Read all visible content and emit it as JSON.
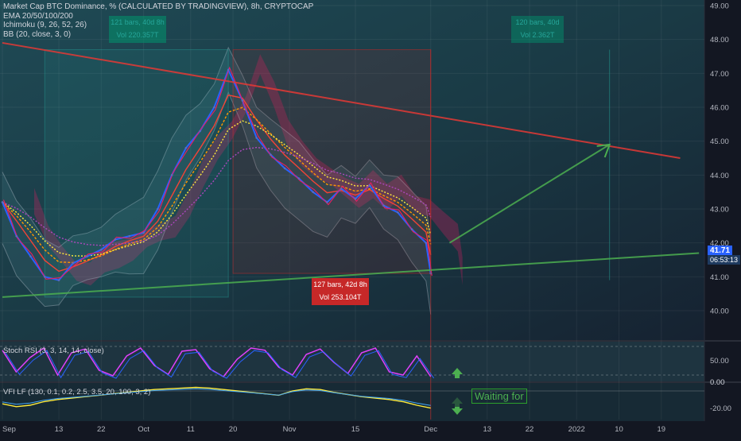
{
  "chart_data": {
    "type": "line",
    "title": "Market Cap BTC Dominance, % (CALCULATED BY TRADINGVIEW), 8h, CRYPTOCAP",
    "indicators": [
      "EMA 20/50/100/200",
      "Ichimoku (9, 26, 52, 26)",
      "BB (20, close, 3, 0)"
    ],
    "x_ticks": [
      "Sep",
      "13",
      "22",
      "Oct",
      "11",
      "20",
      "Nov",
      "15",
      "Dec",
      "13",
      "22",
      "2022",
      "10",
      "19"
    ],
    "y_ticks": [
      "49.00",
      "48.00",
      "47.00",
      "46.00",
      "45.00",
      "44.00",
      "43.00",
      "42.00",
      "41.00",
      "40.00"
    ],
    "ylim": [
      39.5,
      49.2
    ],
    "price_series": [
      [
        "Sep 1",
        43.2
      ],
      [
        "Sep 4",
        42.2
      ],
      [
        "Sep 7",
        41.6
      ],
      [
        "Sep 10",
        41.0
      ],
      [
        "Sep 13",
        40.9
      ],
      [
        "Sep 16",
        41.4
      ],
      [
        "Sep 19",
        41.6
      ],
      [
        "Sep 22",
        41.8
      ],
      [
        "Sep 25",
        42.1
      ],
      [
        "Sep 28",
        42.2
      ],
      [
        "Oct 1",
        42.3
      ],
      [
        "Oct 4",
        43.0
      ],
      [
        "Oct 7",
        44.0
      ],
      [
        "Oct 10",
        44.8
      ],
      [
        "Oct 13",
        45.3
      ],
      [
        "Oct 16",
        46.0
      ],
      [
        "Oct 19",
        47.1
      ],
      [
        "Oct 22",
        46.2
      ],
      [
        "Oct 25",
        45.1
      ],
      [
        "Oct 28",
        44.6
      ],
      [
        "Oct 31",
        44.2
      ],
      [
        "Nov 3",
        43.9
      ],
      [
        "Nov 6",
        43.5
      ],
      [
        "Nov 9",
        43.2
      ],
      [
        "Nov 12",
        43.6
      ],
      [
        "Nov 15",
        43.3
      ],
      [
        "Nov 18",
        43.7
      ],
      [
        "Nov 21",
        43.1
      ],
      [
        "Nov 24",
        42.9
      ],
      [
        "Nov 27",
        42.4
      ],
      [
        "Nov 30",
        42.0
      ],
      [
        "Dec 1",
        41.1
      ]
    ],
    "last_price": "41.71",
    "countdown": "06:53:13",
    "measure_boxes": [
      {
        "label": "121 bars, 40d 8h",
        "vol": "Vol 220.357T"
      },
      {
        "label": "127 bars, 42d 8h",
        "vol": "Vol 253.104T"
      },
      {
        "label": "120 bars, 40d",
        "vol": "Vol 2.362T"
      }
    ],
    "trendlines": [
      {
        "name": "resistance",
        "color": "#e53935",
        "points": [
          [
            "Sep 1",
            47.9
          ],
          [
            "Jan 23",
            44.5
          ]
        ]
      },
      {
        "name": "support",
        "color": "#4caf50",
        "points": [
          [
            "Sep 1",
            40.4
          ],
          [
            "Jan 27",
            41.7
          ]
        ]
      },
      {
        "name": "projection-arrow",
        "color": "#4caf50",
        "points": [
          [
            "Dec 5",
            42.0
          ],
          [
            "Jan 8",
            44.9
          ]
        ]
      }
    ],
    "stoch_rsi": {
      "label": "Stoch RSI (3, 3, 14, 14, close)",
      "y_ticks": [
        "50.00",
        "0.00"
      ],
      "values": [
        88,
        20,
        65,
        95,
        10,
        80,
        92,
        25,
        8,
        70,
        95,
        40,
        12,
        85,
        90,
        30,
        5,
        60,
        95,
        88,
        35,
        10,
        75,
        92,
        50,
        15,
        80,
        95,
        20,
        10,
        70,
        5
      ]
    },
    "vfi": {
      "label": "VFI LF (130, 0.1, 0.2, 2.5, 3.5, 20, 100, 3, 2)",
      "y_ticks": [
        "0.00",
        "-20.00"
      ],
      "values": [
        -18,
        -22,
        -20,
        -15,
        -12,
        -10,
        -8,
        -6,
        -4,
        -2,
        0,
        2,
        3,
        4,
        5,
        4,
        2,
        0,
        -2,
        -4,
        -6,
        0,
        3,
        2,
        -2,
        -5,
        -8,
        -10,
        -12,
        -15,
        -20,
        -24
      ],
      "annotation": "Waiting for"
    }
  }
}
